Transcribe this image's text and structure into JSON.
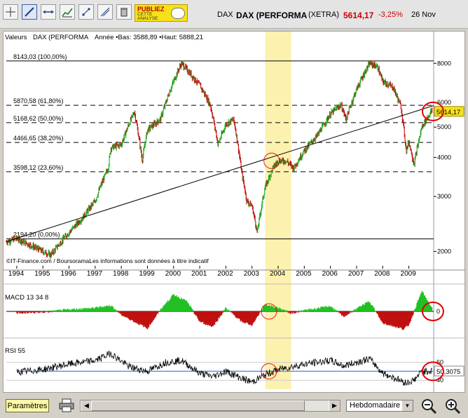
{
  "toolbar": {
    "buttons": [
      "crosshair-tool",
      "trendline-tool",
      "parallel-lines-tool",
      "chart-type-tool",
      "fibonacci-tool",
      "drawing-tool",
      "delete-tool"
    ],
    "ad_line1": "PUBLIEZ",
    "ad_line2": "CETTE ANALYSE"
  },
  "quote": {
    "ticker": "DAX",
    "name": "DAX (PERFORMA",
    "exchange": "(XETRA)",
    "price": "5614,17",
    "change": "-3,25%",
    "date": "26 Nov",
    "price_color": "#cc0000"
  },
  "legend": {
    "valeurs": "Valeurs",
    "series": "DAX (PERFORMA",
    "year_range": "Année •Bas: 3588,89 •Haut: 5888,21"
  },
  "price_panel": {
    "fib_levels": [
      {
        "label": "8143,03 (100,00%)",
        "value": 8143
      },
      {
        "label": "5870,58 (61,80%)",
        "value": 5870.58
      },
      {
        "label": "5168,62 (50,00%)",
        "value": 5168.62
      },
      {
        "label": "4466,65 (38,20%)",
        "value": 4466.65
      },
      {
        "label": "3598,12 (23,60%)",
        "value": 3598.12
      },
      {
        "label": "2194,20 (0,00%)",
        "value": 2194.2
      }
    ],
    "y_ticks": [
      "8000",
      "6000",
      "5000",
      "4000",
      "3000",
      "2000"
    ],
    "last_price_label": "5614,17",
    "source": "©IT-Finance.com / BoursoramaLes informations sont données à titre indicatif"
  },
  "x_ticks": [
    "1994",
    "1995",
    "1996",
    "1997",
    "1998",
    "1999",
    "2000",
    "2001",
    "2002",
    "2003",
    "2004",
    "2005",
    "2006",
    "2007",
    "2008",
    "2009"
  ],
  "macd": {
    "label": "MACD 13 34 8",
    "zero_label": "0"
  },
  "rsi": {
    "label": "RSI 55",
    "tick_60": "60",
    "tick_40": "40",
    "value_label": "50,3075"
  },
  "bottom": {
    "params_label": "Paramètres",
    "period": "Hebdomadaire"
  },
  "chart_data": {
    "type": "line",
    "title": "DAX (PERFORMA (XETRA)",
    "x_unit": "year",
    "y_scale": "log",
    "ylim": [
      1800,
      9500
    ],
    "xlim": [
      1993.6,
      2009.95
    ],
    "series": [
      {
        "name": "DAX (PERFORMA",
        "x": [
          1993.6,
          1994.0,
          1994.5,
          1995.0,
          1995.3,
          1995.8,
          1996.5,
          1997.0,
          1997.5,
          1997.6,
          1998.0,
          1998.5,
          1998.8,
          1999.0,
          1999.5,
          2000.0,
          2000.3,
          2000.7,
          2001.0,
          2001.4,
          2001.7,
          2002.0,
          2002.3,
          2002.6,
          2002.8,
          2003.0,
          2003.2,
          2003.5,
          2003.8,
          2004.0,
          2004.3,
          2004.6,
          2005.0,
          2005.5,
          2006.0,
          2006.4,
          2006.6,
          2007.0,
          2007.5,
          2007.8,
          2008.0,
          2008.4,
          2008.7,
          2008.9,
          2009.0,
          2009.2,
          2009.5,
          2009.85,
          2009.9
        ],
        "y": [
          2150,
          2200,
          2100,
          2000,
          1950,
          2200,
          2550,
          2900,
          3700,
          4300,
          4400,
          5600,
          3900,
          4900,
          5300,
          7000,
          8000,
          7300,
          6800,
          5900,
          4400,
          5100,
          5300,
          3600,
          2900,
          2800,
          2300,
          3200,
          3700,
          3900,
          3900,
          3700,
          4200,
          4700,
          5500,
          5900,
          5300,
          6600,
          8000,
          7800,
          7000,
          6700,
          5800,
          4200,
          4500,
          3800,
          5000,
          5600,
          5614
        ]
      },
      {
        "name": "MACD 13 34 8",
        "x": [
          1994.0,
          1995.0,
          1996.0,
          1997.0,
          1997.6,
          1998.0,
          1999.0,
          1999.5,
          2000.0,
          2000.5,
          2001.0,
          2001.5,
          2002.0,
          2002.6,
          2003.0,
          2003.5,
          2004.0,
          2004.5,
          2005.0,
          2006.0,
          2006.5,
          2007.0,
          2007.5,
          2008.0,
          2008.5,
          2008.8,
          2009.0,
          2009.5,
          2009.9
        ],
        "y": [
          -20,
          -10,
          20,
          40,
          70,
          -40,
          -200,
          20,
          200,
          120,
          -120,
          -180,
          40,
          -120,
          -160,
          80,
          40,
          -20,
          10,
          60,
          -60,
          30,
          120,
          -140,
          -180,
          -210,
          -160,
          240,
          30
        ]
      },
      {
        "name": "RSI 55",
        "x": [
          1994.0,
          1995.0,
          1996.0,
          1997.0,
          1997.6,
          1998.3,
          1999.0,
          1999.7,
          2000.3,
          2001.0,
          2001.5,
          2002.0,
          2002.7,
          2003.0,
          2003.5,
          2004.0,
          2005.0,
          2006.0,
          2006.5,
          2007.0,
          2007.5,
          2008.0,
          2008.5,
          2008.9,
          2009.2,
          2009.5,
          2009.9
        ],
        "y": [
          49,
          52,
          58,
          62,
          70,
          55,
          50,
          60,
          62,
          48,
          44,
          50,
          41,
          38,
          46,
          52,
          58,
          62,
          56,
          60,
          64,
          48,
          42,
          37,
          40,
          50,
          50.3
        ]
      }
    ],
    "trendline": {
      "x": [
        1993.6,
        2009.95
      ],
      "y": [
        2150,
        5860
      ]
    },
    "highlight": {
      "x_range": [
        2003.5,
        2004.5
      ],
      "color": "#fdf1b0"
    },
    "macd_ylim": [
      -260,
      260
    ],
    "rsi_ylim": [
      30,
      80
    ],
    "rsi_reference": 50,
    "annotation_circles": [
      {
        "panel": "price",
        "x": 2003.75,
        "y": 3900
      },
      {
        "panel": "price",
        "x": 2009.6,
        "y": 5614
      },
      {
        "panel": "macd",
        "x": 2003.65,
        "y": 0
      },
      {
        "panel": "macd",
        "x": 2009.6,
        "y": 0
      },
      {
        "panel": "rsi",
        "x": 2003.65,
        "y": 50
      },
      {
        "panel": "rsi",
        "x": 2009.6,
        "y": 50
      }
    ],
    "colors": {
      "up": "#22a822",
      "down": "#c01010",
      "trendline": "#000000",
      "rsi_ref": "#6a8fe0",
      "circles": "#e00000",
      "macd_pos": "#22c022",
      "macd_neg": "#c01010"
    }
  }
}
